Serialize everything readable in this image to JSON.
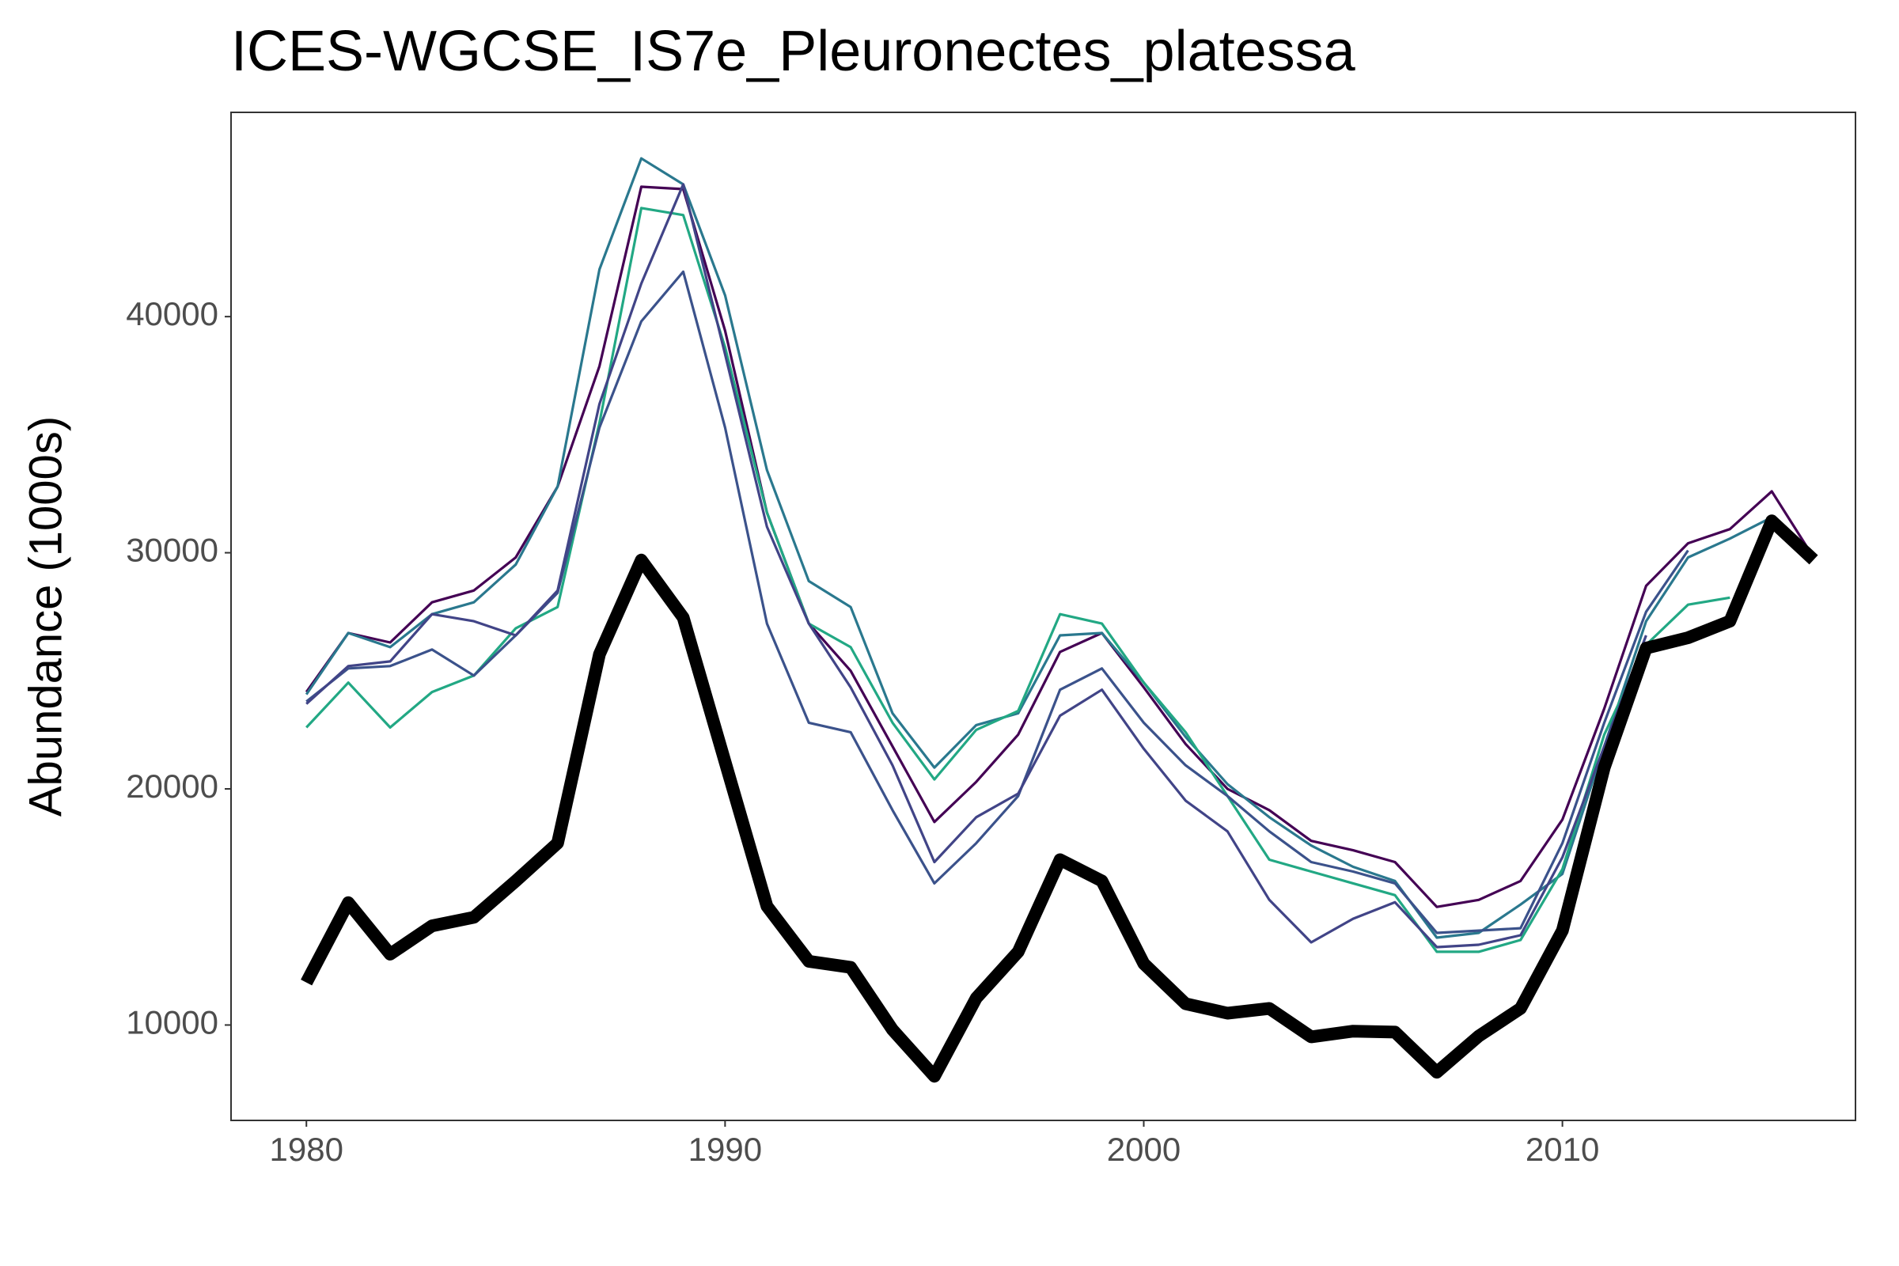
{
  "chart_data": {
    "type": "line",
    "title": "ICES-WGCSE_IS7e_Pleuronectes_platessa",
    "y_label": "Abundance (1000s)",
    "x": [
      1980,
      1981,
      1982,
      1983,
      1984,
      1985,
      1986,
      1987,
      1988,
      1989,
      1990,
      1991,
      1992,
      1993,
      1994,
      1995,
      1996,
      1997,
      1998,
      1999,
      2000,
      2001,
      2002,
      2003,
      2004,
      2005,
      2006,
      2007,
      2008,
      2009,
      2010,
      2011,
      2012,
      2013,
      2014,
      2015,
      2016
    ],
    "xlim": [
      1978.2,
      2017.0
    ],
    "xticks": [
      1980,
      1990,
      2000,
      2010
    ],
    "ylim": [
      5960,
      48650
    ],
    "yticks": [
      10000,
      20000,
      30000,
      40000
    ],
    "grid": false,
    "series": [
      {
        "color": "#440154",
        "line_width": 1,
        "values": [
          24100,
          26600,
          26200,
          27900,
          28400,
          29800,
          32800,
          37900,
          45500,
          45400,
          39400,
          31700,
          27000,
          25000,
          21800,
          18600,
          20300,
          22300,
          25800,
          26600,
          24300,
          21900,
          20000,
          19100,
          17800,
          17400,
          16900,
          15000,
          15300,
          16100,
          18700,
          23400,
          28600,
          30400,
          31000,
          32600,
          29800
        ]
      },
      {
        "color": "#2a788e",
        "line_width": 1,
        "values": [
          24000,
          26600,
          26000,
          27400,
          27900,
          29500,
          32800,
          42000,
          46700,
          45600,
          40900,
          33500,
          28800,
          27700,
          23200,
          20900,
          22700,
          23200,
          26500,
          26600,
          24500,
          22200,
          20200,
          18800,
          17600,
          16700,
          16100,
          13700,
          13900,
          15100,
          16400,
          21800,
          27100,
          29800,
          30600,
          31500,
          null
        ]
      },
      {
        "color": "#22a884",
        "line_width": 1,
        "values": [
          22600,
          24500,
          22600,
          24100,
          24800,
          26800,
          27700,
          35500,
          44600,
          44300,
          38700,
          31700,
          27000,
          26000,
          22800,
          20400,
          22500,
          23300,
          27400,
          27000,
          24500,
          22400,
          19700,
          17000,
          16500,
          16000,
          15500,
          13100,
          13100,
          13600,
          16600,
          22300,
          26100,
          27800,
          28100,
          null,
          null
        ]
      },
      {
        "color": "#3b528b",
        "line_width": 1,
        "values": [
          23700,
          25100,
          25200,
          25900,
          24800,
          26500,
          28300,
          35300,
          39800,
          41900,
          35300,
          27000,
          22800,
          22400,
          19100,
          16000,
          17700,
          19700,
          24200,
          25100,
          22800,
          21000,
          19700,
          18200,
          16900,
          16500,
          16000,
          13900,
          14000,
          14100,
          17700,
          22800,
          27500,
          30100,
          null,
          null,
          null
        ]
      },
      {
        "color": "#414487",
        "line_width": 1,
        "values": [
          23600,
          25200,
          25400,
          27400,
          27100,
          26500,
          28400,
          36300,
          41400,
          45600,
          38400,
          31100,
          27000,
          24300,
          21000,
          16900,
          18800,
          19800,
          23100,
          24200,
          21700,
          19500,
          18200,
          15300,
          13500,
          14500,
          15200,
          13300,
          13400,
          13800,
          17100,
          21800,
          26500,
          null,
          null,
          null,
          null
        ]
      },
      {
        "color": "#000000",
        "line_width": 5,
        "values": [
          11800,
          15180,
          13000,
          14200,
          14560,
          16100,
          17700,
          25700,
          29690,
          27250,
          21140,
          15030,
          12700,
          12440,
          9800,
          7830,
          11140,
          13100,
          17000,
          16100,
          12600,
          10900,
          10500,
          10700,
          9500,
          9740,
          9700,
          8000,
          9530,
          10700,
          14000,
          20900,
          25960,
          26400,
          27100,
          31350,
          29700
        ]
      }
    ]
  }
}
